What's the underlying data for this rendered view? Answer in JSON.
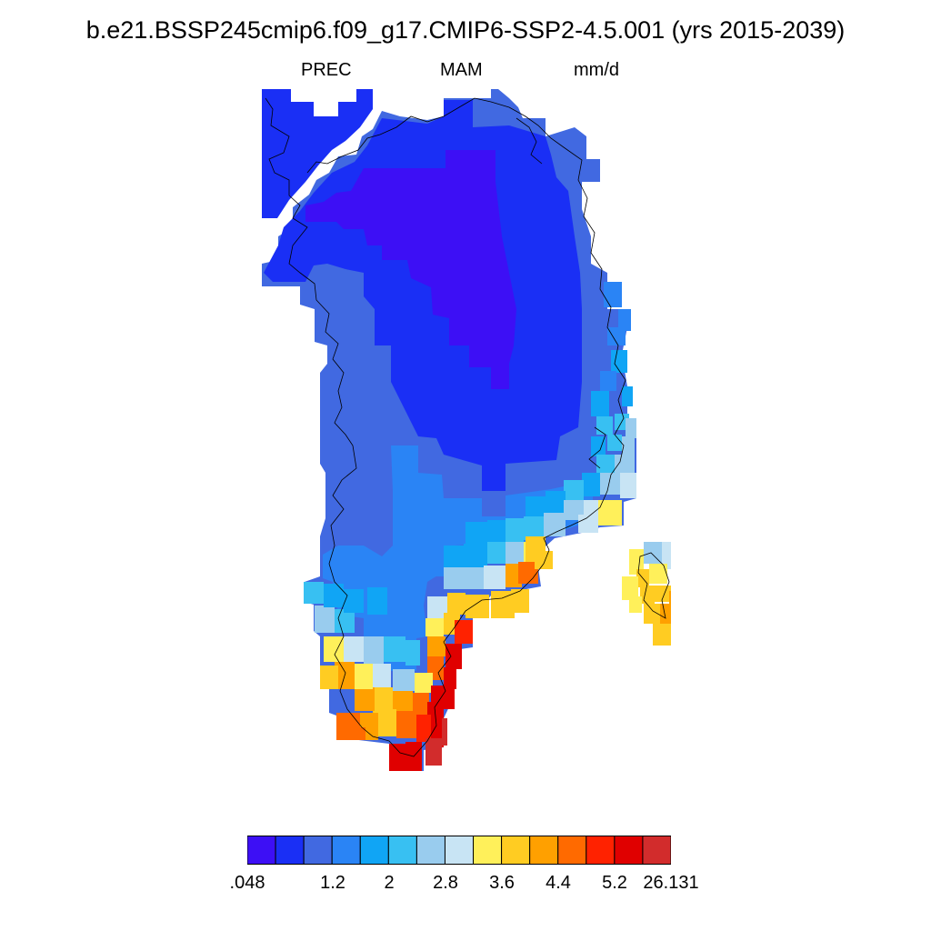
{
  "title": "b.e21.BSSP245cmip6.f09_g17.CMIP6-SSP2-4.5.001 (yrs 2015-2039)",
  "subtitle": {
    "variable": "PREC",
    "season": "MAM",
    "units": "mm/d"
  },
  "colorbar": {
    "colors": [
      "#3d0ff5",
      "#1a2ff5",
      "#4169e1",
      "#2a84f5",
      "#10a5f5",
      "#38c0f2",
      "#99ccee",
      "#c8e4f4",
      "#fff05a",
      "#ffcc22",
      "#ffa000",
      "#ff6a00",
      "#ff2200",
      "#e00000",
      "#d22c2c"
    ],
    "labels": [
      ".048",
      "1.2",
      "2",
      "2.8",
      "3.6",
      "4.4",
      "5.2",
      "26.131"
    ]
  },
  "map": {
    "land_overlay": "coastline-lines",
    "region": "Greenland",
    "grid_classes": "color bin index per cell (0 = lowest)"
  }
}
